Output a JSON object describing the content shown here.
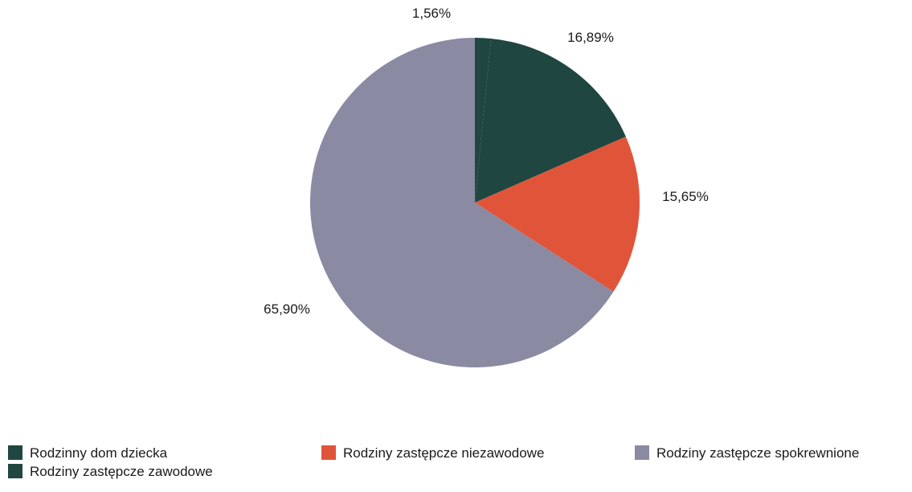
{
  "chart_data": {
    "type": "pie",
    "slices": [
      {
        "label": "Rodzinny dom dziecka",
        "value": 1.56,
        "display": "1,56%",
        "color": "#1f4640"
      },
      {
        "label": "Rodziny zastępcze zawodowe",
        "value": 16.89,
        "display": "16,89%",
        "color": "#1f4640"
      },
      {
        "label": "Rodziny zastępcze niezawodowe",
        "value": 15.65,
        "display": "15,65%",
        "color": "#e0553a"
      },
      {
        "label": "Rodziny zastępcze spokrewnione",
        "value": 65.9,
        "display": "65,90%",
        "color": "#8a8aa3"
      }
    ],
    "start_angle": "12 o'clock, clockwise",
    "legend_position": "bottom"
  },
  "legend": [
    {
      "label": "Rodzinny dom dziecka",
      "color": "#1f4640"
    },
    {
      "label": "Rodziny zastępcze zawodowe",
      "color": "#1f4640"
    },
    {
      "label": "Rodziny zastępcze niezawodowe",
      "color": "#e0553a"
    },
    {
      "label": "Rodziny zastępcze spokrewnione",
      "color": "#8a8aa3"
    }
  ]
}
